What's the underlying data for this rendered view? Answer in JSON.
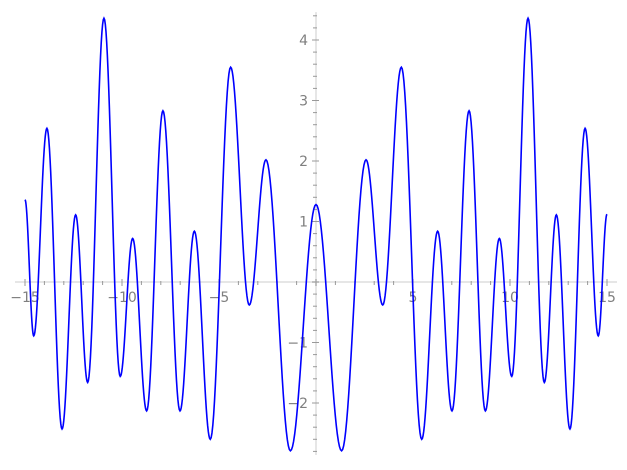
{
  "chart_data": {
    "type": "line",
    "title": "",
    "xlabel": "",
    "ylabel": "",
    "xlim": [
      -15,
      15
    ],
    "ylim": [
      -2.86,
      4.46
    ],
    "grid": false,
    "x_ticks": [
      -15,
      -10,
      -5,
      5,
      10,
      15
    ],
    "x_tick_labels": [
      "−15",
      "−10",
      "−5",
      "5",
      "10",
      "15"
    ],
    "y_ticks": [
      -2,
      -1,
      1,
      2,
      3,
      4
    ],
    "y_tick_labels": [
      "−2",
      "−1",
      "1",
      "2",
      "3",
      "4"
    ],
    "series": [
      {
        "color": "#0000ff",
        "extrema_points": [
          [
            -15.0,
            1.36
          ],
          [
            -14.55,
            -0.89
          ],
          [
            -13.87,
            2.54
          ],
          [
            -13.09,
            -2.43
          ],
          [
            -12.39,
            1.11
          ],
          [
            -11.77,
            -1.66
          ],
          [
            -10.93,
            4.36
          ],
          [
            -10.09,
            -1.56
          ],
          [
            -9.45,
            0.72
          ],
          [
            -8.73,
            -2.13
          ],
          [
            -7.89,
            2.83
          ],
          [
            -7.01,
            -2.13
          ],
          [
            -6.27,
            0.84
          ],
          [
            -5.45,
            -2.6
          ],
          [
            -4.4,
            3.55
          ],
          [
            -3.44,
            -0.38
          ],
          [
            -2.58,
            2.02
          ],
          [
            -1.32,
            -2.79
          ],
          [
            0.0,
            1.28
          ],
          [
            1.32,
            -2.79
          ],
          [
            2.58,
            2.02
          ],
          [
            3.44,
            -0.38
          ],
          [
            4.4,
            3.55
          ],
          [
            5.45,
            -2.6
          ],
          [
            6.27,
            0.84
          ],
          [
            7.01,
            -2.13
          ],
          [
            7.89,
            2.83
          ],
          [
            8.73,
            -2.13
          ],
          [
            9.45,
            0.72
          ],
          [
            10.09,
            -1.56
          ],
          [
            10.93,
            4.36
          ],
          [
            11.77,
            -1.66
          ],
          [
            12.39,
            1.11
          ],
          [
            13.09,
            -2.43
          ],
          [
            13.87,
            2.54
          ],
          [
            14.55,
            -0.89
          ],
          [
            15.0,
            1.12
          ]
        ]
      }
    ]
  }
}
